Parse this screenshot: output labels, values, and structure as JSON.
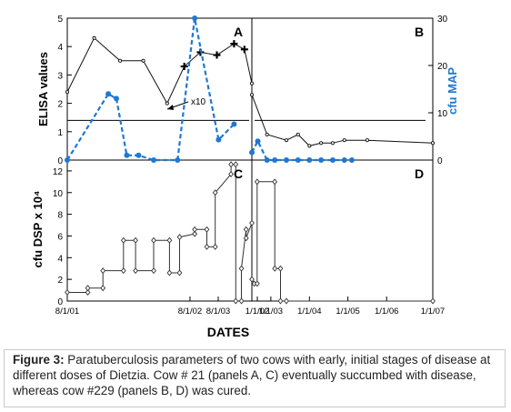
{
  "figure": {
    "caption_label": "Figure 3:",
    "caption_text": "Paratuberculosis parameters of two cows with early, initial stages of disease at different doses of Dietzia. Cow # 21 (panels A, C) eventually succumbed with disease, whereas cow #229 (panels B, D) was cured."
  },
  "colors": {
    "elisa": "#111111",
    "elisa_markers": "#000000",
    "map": "#1f78d1",
    "dsp": "#333333",
    "threshold": "#000000"
  },
  "chart_data": [
    {
      "id": "A",
      "type": "line",
      "panel_label": "A",
      "ylabel": "ELISA values",
      "y2label": "cfu MAP",
      "ylim": [
        0,
        5
      ],
      "yticks": [
        0,
        1,
        2,
        3,
        4,
        5
      ],
      "y2lim": [
        0,
        30
      ],
      "y2ticks": [
        0,
        10,
        20,
        30
      ],
      "xlim": [
        "2001-08-01",
        "2003-02-01"
      ],
      "annotation": "x10",
      "threshold": 1.4,
      "series": [
        {
          "axis": "left",
          "style": "solid",
          "x": [
            "2001-08-01",
            "2001-10-20",
            "2002-01-05",
            "2002-03-15",
            "2002-05-25",
            "2002-07-15",
            "2002-09-01",
            "2002-10-20",
            "2002-12-10",
            "2003-01-10",
            "2003-02-01"
          ],
          "y": [
            2.4,
            4.3,
            3.5,
            3.5,
            2.0,
            3.3,
            3.8,
            3.7,
            4.1,
            3.9,
            2.7
          ]
        },
        {
          "axis": "right",
          "style": "dashed",
          "x": [
            "2001-08-01",
            "2001-12-01",
            "2001-12-25",
            "2002-01-25",
            "2002-03-01",
            "2002-04-15",
            "2002-06-25",
            "2002-08-15",
            "2002-10-25",
            "2002-12-10"
          ],
          "y": [
            0,
            14,
            13,
            1,
            1,
            0,
            0,
            30,
            4.3,
            7.6
          ]
        }
      ]
    },
    {
      "id": "B",
      "type": "line",
      "panel_label": "B",
      "ylim": [
        0,
        5
      ],
      "y2lim": [
        0,
        30
      ],
      "xlim": [
        "2003-02-01",
        "2007-01-01"
      ],
      "threshold": 1.4,
      "series": [
        {
          "axis": "left",
          "style": "solid",
          "x": [
            "2003-02-01",
            "2003-06-01",
            "2003-11-01",
            "2004-02-01",
            "2004-05-01",
            "2004-08-01",
            "2004-11-01",
            "2005-02-01",
            "2005-08-01",
            "2007-01-01"
          ],
          "y": [
            2.3,
            0.9,
            0.7,
            0.9,
            0.5,
            0.6,
            0.6,
            0.7,
            0.7,
            0.6
          ]
        },
        {
          "axis": "right",
          "style": "dashed",
          "x": [
            "2003-02-01",
            "2003-03-20",
            "2003-06-01",
            "2003-08-01",
            "2003-11-01",
            "2004-02-01",
            "2004-05-01",
            "2004-08-01",
            "2004-11-01",
            "2005-02-01",
            "2005-04-01"
          ],
          "y": [
            1.6,
            4.0,
            0,
            0,
            0,
            0,
            0,
            0,
            0,
            0,
            0
          ]
        }
      ]
    },
    {
      "id": "C",
      "type": "line",
      "panel_label": "C",
      "ylabel": "cfu DSP x 10⁴",
      "ylim": [
        0,
        13
      ],
      "yticks": [
        0,
        2,
        4,
        6,
        8,
        10,
        12
      ],
      "xlim": [
        "2001-08-01",
        "2003-02-01"
      ],
      "series": [
        {
          "style": "solid",
          "x": [
            "2001-08-01",
            "2001-10-01",
            "2001-10-01",
            "2001-11-15",
            "2001-11-15",
            "2002-01-15",
            "2002-01-15",
            "2002-02-20",
            "2002-02-20",
            "2002-04-15",
            "2002-04-15",
            "2002-06-01",
            "2002-06-01",
            "2002-07-01",
            "2002-07-01",
            "2002-08-15",
            "2002-08-15",
            "2002-09-20",
            "2002-09-20",
            "2002-10-15",
            "2002-10-15",
            "2002-12-01",
            "2002-12-01",
            "2002-12-15",
            "2002-12-15",
            "2003-01-01",
            "2003-01-01",
            "2003-01-15",
            "2003-01-15",
            "2003-02-01"
          ],
          "y": [
            0.8,
            0.8,
            1.2,
            1.2,
            2.8,
            2.8,
            5.6,
            5.6,
            2.8,
            2.8,
            5.6,
            5.6,
            2.6,
            2.6,
            5.9,
            6.2,
            6.6,
            6.6,
            5.0,
            5.0,
            10.0,
            11.7,
            12.6,
            12.6,
            0,
            0,
            3.0,
            6.6,
            5.8,
            7.2
          ]
        }
      ]
    },
    {
      "id": "D",
      "type": "line",
      "panel_label": "D",
      "ylim": [
        0,
        13
      ],
      "xlim": [
        "2003-02-01",
        "2007-01-01"
      ],
      "xlabel": "DATES",
      "xticks": [
        "8/1/01",
        "8/1/02",
        "8/1/03",
        "1/1/02",
        "1/1/03",
        "1/1/04",
        "1/1/05",
        "1/1/06",
        "1/1/07"
      ],
      "series": [
        {
          "style": "solid",
          "x": [
            "2003-02-01",
            "2003-02-20",
            "2003-03-15",
            "2003-03-15",
            "2003-08-01",
            "2003-08-01",
            "2003-09-15",
            "2003-09-15",
            "2003-11-01",
            "2007-01-01"
          ],
          "y": [
            2.0,
            1.6,
            1.6,
            11.0,
            11.0,
            3.0,
            3.0,
            0,
            0,
            0
          ]
        }
      ]
    }
  ]
}
